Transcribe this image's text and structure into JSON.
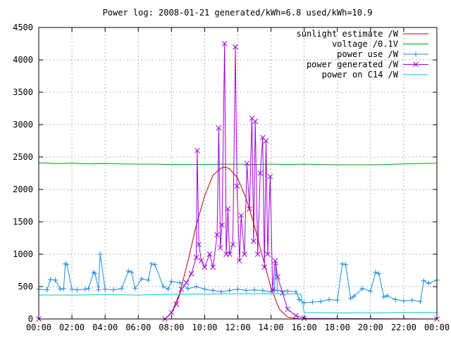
{
  "chart_data": {
    "type": "line",
    "title": "Power log: 2008-01-21 generated/kWh=6.8 used/kWh=10.9",
    "xlabel": "",
    "ylabel": "",
    "xlim": [
      0,
      24
    ],
    "ylim": [
      0,
      4500
    ],
    "grid": true,
    "legend_position": "top-right",
    "x_tick_labels": [
      "00:00",
      "02:00",
      "04:00",
      "06:00",
      "08:00",
      "10:00",
      "12:00",
      "14:00",
      "16:00",
      "18:00",
      "20:00",
      "22:00",
      "00:00"
    ],
    "x_tick_values": [
      0,
      2,
      4,
      6,
      8,
      10,
      12,
      14,
      16,
      18,
      20,
      22,
      24
    ],
    "y_tick_values": [
      0,
      500,
      1000,
      1500,
      2000,
      2500,
      3000,
      3500,
      4000,
      4500
    ],
    "series": [
      {
        "name": "sunlight estimate /W",
        "color": "#c00000",
        "marker": "none",
        "x": [
          7.6,
          8.0,
          8.5,
          9.0,
          9.5,
          10.0,
          10.5,
          11.0,
          11.25,
          11.5,
          12.0,
          12.5,
          13.0,
          13.5,
          14.0,
          14.5,
          15.0,
          15.5,
          16.0
        ],
        "y": [
          0,
          90,
          400,
          900,
          1450,
          1900,
          2220,
          2330,
          2345,
          2320,
          2170,
          1860,
          1440,
          950,
          480,
          150,
          30,
          5,
          0
        ]
      },
      {
        "name": "voltage /0.1V",
        "color": "#00a000",
        "marker": "none",
        "x": [
          0,
          1,
          2,
          3,
          4,
          5,
          6,
          7,
          8,
          9,
          10,
          11,
          12,
          13,
          14,
          15,
          16,
          17,
          18,
          19,
          20,
          21,
          22,
          23,
          24
        ],
        "y": [
          2410,
          2400,
          2405,
          2395,
          2400,
          2395,
          2390,
          2390,
          2385,
          2385,
          2385,
          2390,
          2390,
          2385,
          2390,
          2385,
          2390,
          2385,
          2380,
          2380,
          2380,
          2385,
          2395,
          2400,
          2405
        ]
      },
      {
        "name": "power use /W",
        "color": "#1e8ce6",
        "marker": "plus",
        "x": [
          0,
          0.5,
          0.7,
          1.0,
          1.3,
          1.5,
          1.6,
          1.7,
          2.0,
          2.3,
          2.8,
          3.0,
          3.3,
          3.4,
          3.6,
          3.7,
          4.0,
          4.5,
          5.0,
          5.4,
          5.6,
          5.8,
          6.2,
          6.6,
          6.8,
          7.0,
          7.5,
          7.8,
          8.0,
          8.5,
          9.0,
          9.5,
          10.0,
          10.5,
          11.0,
          11.5,
          12.0,
          12.5,
          13.0,
          13.5,
          14.0,
          14.2,
          14.3,
          14.4,
          15.0,
          15.5,
          15.7,
          16.0,
          16.5,
          17.0,
          17.5,
          18.0,
          18.3,
          18.5,
          18.8,
          19.0,
          19.5,
          20.0,
          20.3,
          20.5,
          20.8,
          21.0,
          21.5,
          22.0,
          22.5,
          23.0,
          23.2,
          23.5,
          24.0
        ],
        "y": [
          460,
          450,
          610,
          600,
          460,
          470,
          850,
          840,
          460,
          450,
          460,
          470,
          720,
          700,
          450,
          1000,
          460,
          450,
          470,
          740,
          720,
          470,
          620,
          600,
          850,
          840,
          500,
          460,
          580,
          560,
          470,
          500,
          460,
          440,
          420,
          440,
          460,
          440,
          450,
          440,
          420,
          450,
          840,
          440,
          430,
          420,
          300,
          250,
          260,
          270,
          300,
          290,
          850,
          840,
          320,
          350,
          470,
          430,
          720,
          700,
          340,
          360,
          300,
          280,
          290,
          270,
          590,
          550,
          600
        ]
      },
      {
        "name": "power generated /W",
        "color": "#a000e0",
        "marker": "cross",
        "x": [
          0,
          7.6,
          8.0,
          8.3,
          8.6,
          8.9,
          9.2,
          9.5,
          9.55,
          9.65,
          9.8,
          10.0,
          10.3,
          10.5,
          10.75,
          10.85,
          10.95,
          11.05,
          11.2,
          11.3,
          11.4,
          11.5,
          11.7,
          11.85,
          11.95,
          12.1,
          12.2,
          12.4,
          12.55,
          12.7,
          12.85,
          12.95,
          13.05,
          13.2,
          13.35,
          13.5,
          13.6,
          13.7,
          13.8,
          13.95,
          14.1,
          14.25,
          14.4,
          14.7,
          15.0,
          15.5,
          16.0,
          24.0
        ],
        "y": [
          0,
          0,
          100,
          230,
          460,
          560,
          700,
          950,
          2600,
          1150,
          900,
          800,
          1000,
          800,
          1300,
          2950,
          1100,
          1450,
          4250,
          1000,
          1700,
          1000,
          1150,
          4200,
          2050,
          900,
          1600,
          1000,
          2400,
          1700,
          3100,
          1200,
          3050,
          1000,
          2250,
          2800,
          800,
          2750,
          1000,
          2200,
          450,
          900,
          650,
          400,
          150,
          50,
          10,
          0
        ]
      },
      {
        "name": "power on C14 /W",
        "color": "#00c8c8",
        "marker": "none",
        "x": [
          0,
          2,
          4,
          6,
          8,
          10,
          12,
          14,
          15.8,
          16.0,
          18,
          20,
          22,
          24
        ],
        "y": [
          370,
          370,
          375,
          370,
          380,
          385,
          390,
          390,
          385,
          100,
          95,
          95,
          100,
          100
        ]
      }
    ]
  }
}
